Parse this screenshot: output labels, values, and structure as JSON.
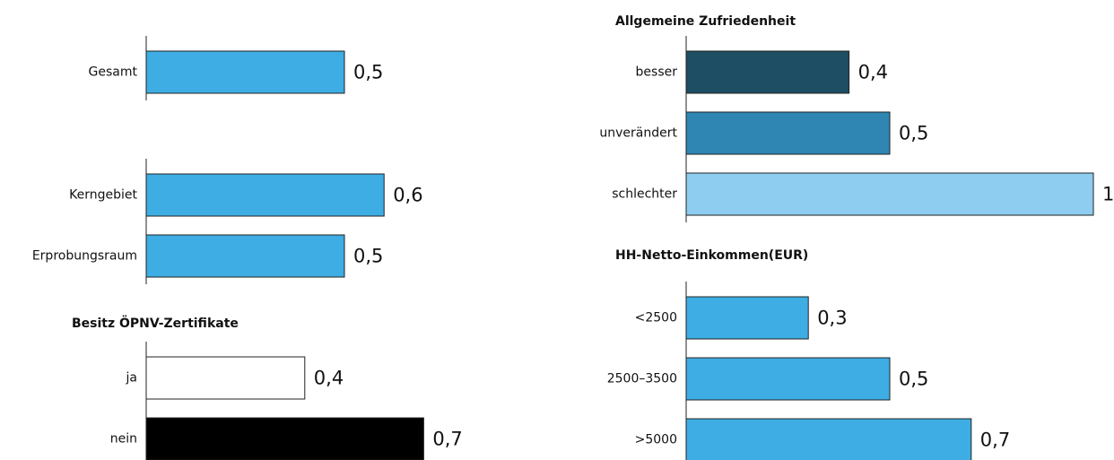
{
  "chart_data": [
    {
      "type": "bar",
      "categories": [
        "Gesamt"
      ],
      "values": [
        0.5
      ],
      "value_labels": [
        "0,5"
      ],
      "colors": [
        "#3eade3"
      ],
      "xlim": [
        0,
        1
      ]
    },
    {
      "type": "bar",
      "categories": [
        "Kerngebiet",
        "Erprobungsraum"
      ],
      "values": [
        0.6,
        0.5
      ],
      "value_labels": [
        "0,6",
        "0,5"
      ],
      "colors": [
        "#3eade3",
        "#3eade3"
      ],
      "xlim": [
        0,
        1
      ]
    },
    {
      "type": "bar",
      "title": "Besitz ÖPNV-Zertifikate",
      "categories": [
        "ja",
        "nein"
      ],
      "values": [
        0.4,
        0.7
      ],
      "value_labels": [
        "0,4",
        "0,7"
      ],
      "colors": [
        "#ffffff",
        "#000000"
      ],
      "xlim": [
        0,
        1
      ]
    },
    {
      "type": "bar",
      "title": "Allgemeine Zufriedenheit",
      "categories": [
        "besser",
        "unverändert",
        "schlechter"
      ],
      "values": [
        0.4,
        0.5,
        1
      ],
      "value_labels": [
        "0,4",
        "0,5",
        "1"
      ],
      "colors": [
        "#1d4e63",
        "#2f86b3",
        "#8ecdef"
      ],
      "xlim": [
        0,
        1
      ]
    },
    {
      "type": "bar",
      "title": "HH-Netto-Einkommen(EUR)",
      "categories": [
        "<2500",
        "2500–3500",
        ">5000"
      ],
      "values": [
        0.3,
        0.5,
        0.7
      ],
      "value_labels": [
        "0,3",
        "0,5",
        "0,7"
      ],
      "colors": [
        "#3eade3",
        "#3eade3",
        "#3eade3"
      ],
      "xlim": [
        0,
        1
      ]
    }
  ]
}
